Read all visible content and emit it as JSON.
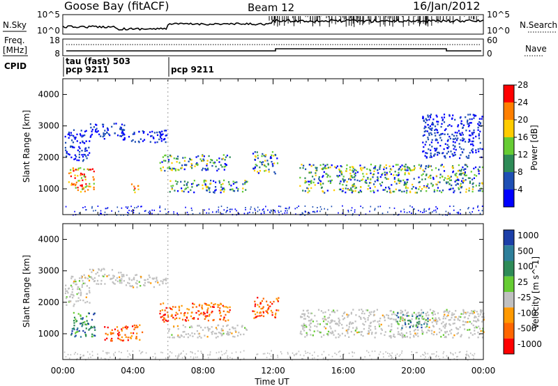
{
  "header": {
    "station": "Goose Bay (fitACF)",
    "beam": "Beam 12",
    "date": "16/Jan/2012"
  },
  "top_panels": {
    "nsky_label": "N.Sky",
    "nsky_ticks": [
      "10^5",
      "10^0"
    ],
    "nsearch_label": "N.Search",
    "nsearch_ticks": [
      "10^5",
      "10^0"
    ],
    "freq_label_1": "Freq.",
    "freq_label_2": "[MHz]",
    "freq_ticks": [
      "18",
      "8"
    ],
    "nave_label": "Nave",
    "nave_ticks": [
      "60",
      "0"
    ],
    "cpid_label": "CPID",
    "cpid_segments": [
      {
        "text_1": "tau (fast) 503",
        "text_2": "pcp 9211",
        "start_hour": 0
      },
      {
        "text_1": "",
        "text_2": "pcp 9211",
        "start_hour": 6
      }
    ]
  },
  "chart_data": [
    {
      "type": "heatmap",
      "title": "",
      "xlabel": "Time UT",
      "ylabel": "Slant Range [km]",
      "x_ticks": [
        "00:00",
        "04:00",
        "08:00",
        "12:00",
        "16:00",
        "20:00",
        "00:00"
      ],
      "x_range_hours": [
        0,
        24
      ],
      "y_ticks": [
        1000,
        2000,
        3000,
        4000
      ],
      "y_range_km": [
        180,
        4500
      ],
      "colorbar": {
        "label": "Power [dB]",
        "ticks": [
          4,
          8,
          12,
          16,
          20,
          24,
          28
        ],
        "colors": [
          "#0000ff",
          "#1e4fb4",
          "#2e8b57",
          "#66cc33",
          "#ffcc00",
          "#ff7f00",
          "#ff0000"
        ]
      },
      "echo_regions": [
        {
          "t0": 0.3,
          "t1": 1.8,
          "r0": 900,
          "r1": 1700,
          "level": "high"
        },
        {
          "t0": 0.1,
          "t1": 1.5,
          "r0": 1900,
          "r1": 2900,
          "level": "low"
        },
        {
          "t0": 1.5,
          "t1": 3.5,
          "r0": 2600,
          "r1": 3100,
          "level": "low"
        },
        {
          "t0": 3.3,
          "t1": 5.9,
          "r0": 2500,
          "r1": 2900,
          "level": "low"
        },
        {
          "t0": 3.8,
          "t1": 4.3,
          "r0": 900,
          "r1": 1200,
          "level": "high"
        },
        {
          "t0": 5.5,
          "t1": 9.5,
          "r0": 1600,
          "r1": 2100,
          "level": "mid"
        },
        {
          "t0": 6.0,
          "t1": 10.5,
          "r0": 900,
          "r1": 1300,
          "level": "mid"
        },
        {
          "t0": 10.8,
          "t1": 12.3,
          "r0": 1500,
          "r1": 2200,
          "level": "mid"
        },
        {
          "t0": 13.5,
          "t1": 24.0,
          "r0": 900,
          "r1": 1800,
          "level": "mid"
        },
        {
          "t0": 20.5,
          "t1": 23.9,
          "r0": 2000,
          "r1": 3400,
          "level": "low"
        }
      ]
    },
    {
      "type": "heatmap",
      "title": "",
      "xlabel": "Time UT",
      "ylabel": "Slant Range [km]",
      "x_ticks": [
        "00:00",
        "04:00",
        "08:00",
        "12:00",
        "16:00",
        "20:00",
        "00:00"
      ],
      "x_range_hours": [
        0,
        24
      ],
      "y_ticks": [
        1000,
        2000,
        3000,
        4000
      ],
      "y_range_km": [
        180,
        4500
      ],
      "colorbar": {
        "label": "Velocity [m s^-1]",
        "ticks": [
          "1000",
          "500",
          "100",
          "25",
          "-25",
          "-100",
          "-500",
          "-1000"
        ],
        "colors": [
          "#1c3fa8",
          "#2e7f9a",
          "#2e8b57",
          "#66cc33",
          "#c0c0c0",
          "#ff9900",
          "#ff6600",
          "#ff0000"
        ]
      },
      "echo_regions": [
        {
          "t0": 0.3,
          "t1": 1.8,
          "r0": 900,
          "r1": 1700,
          "level": "pos"
        },
        {
          "t0": 0.1,
          "t1": 1.5,
          "r0": 1900,
          "r1": 2900,
          "level": "zero"
        },
        {
          "t0": 1.5,
          "t1": 3.5,
          "r0": 2600,
          "r1": 3100,
          "level": "zero"
        },
        {
          "t0": 3.3,
          "t1": 5.9,
          "r0": 2500,
          "r1": 2900,
          "level": "zero"
        },
        {
          "t0": 2.3,
          "t1": 4.5,
          "r0": 800,
          "r1": 1300,
          "level": "neg"
        },
        {
          "t0": 5.5,
          "t1": 9.5,
          "r0": 1400,
          "r1": 2000,
          "level": "neg"
        },
        {
          "t0": 6.0,
          "t1": 10.5,
          "r0": 900,
          "r1": 1300,
          "level": "zero"
        },
        {
          "t0": 10.8,
          "t1": 12.3,
          "r0": 1500,
          "r1": 2200,
          "level": "neg"
        },
        {
          "t0": 13.5,
          "t1": 24.0,
          "r0": 900,
          "r1": 1800,
          "level": "zero"
        },
        {
          "t0": 19.0,
          "t1": 20.8,
          "r0": 1200,
          "r1": 1700,
          "level": "pos"
        }
      ]
    }
  ]
}
